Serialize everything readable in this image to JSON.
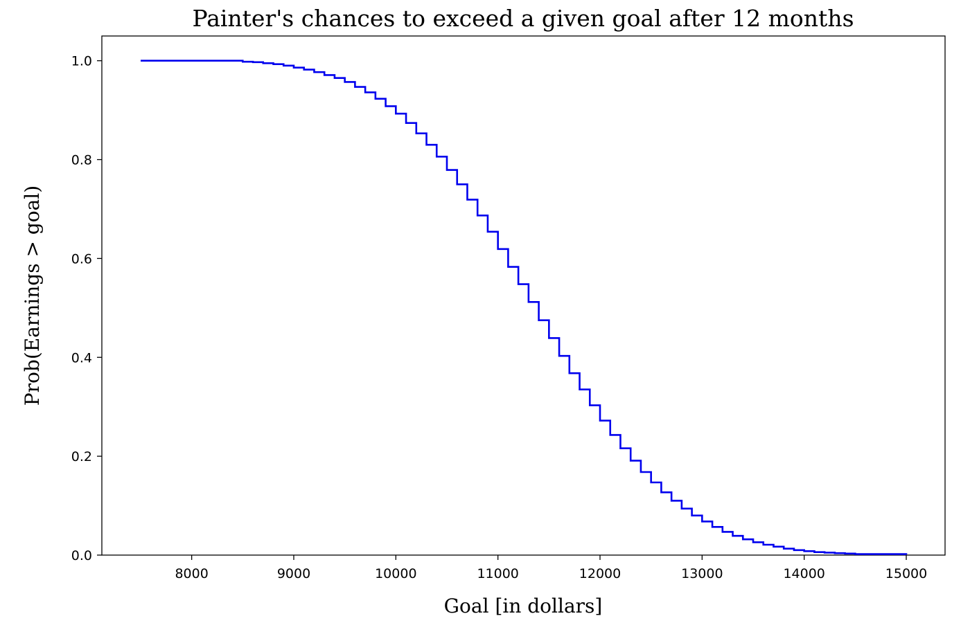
{
  "chart_data": {
    "type": "line",
    "step": true,
    "title": "Painter's chances to exceed a given goal after 12 months",
    "xlabel": "Goal [in dollars]",
    "ylabel": "Prob(Earnings > goal)",
    "xlim": [
      7120,
      15380
    ],
    "ylim": [
      0.0,
      1.05
    ],
    "xticks": [
      8000,
      9000,
      10000,
      11000,
      12000,
      13000,
      14000,
      15000
    ],
    "yticks": [
      0.0,
      0.2,
      0.4,
      0.6,
      0.8,
      1.0
    ],
    "ytick_labels": [
      "0.0",
      "0.2",
      "0.4",
      "0.6",
      "0.8",
      "1.0"
    ],
    "grid": false,
    "series": [
      {
        "color": "#0000ee",
        "x": [
          7500,
          8500,
          8600,
          8700,
          8800,
          8900,
          9000,
          9100,
          9200,
          9300,
          9400,
          9500,
          9600,
          9700,
          9800,
          9900,
          10000,
          10100,
          10200,
          10300,
          10400,
          10500,
          10600,
          10700,
          10800,
          10900,
          11000,
          11100,
          11200,
          11300,
          11400,
          11500,
          11600,
          11700,
          11800,
          11900,
          12000,
          12100,
          12200,
          12300,
          12400,
          12500,
          12600,
          12700,
          12800,
          12900,
          13000,
          13100,
          13200,
          13300,
          13400,
          13500,
          13600,
          13700,
          13800,
          13900,
          14000,
          14100,
          14200,
          14300,
          14400,
          14500,
          15000
        ],
        "y": [
          1.0,
          0.998,
          0.997,
          0.995,
          0.993,
          0.99,
          0.986,
          0.982,
          0.977,
          0.971,
          0.965,
          0.957,
          0.947,
          0.936,
          0.923,
          0.908,
          0.893,
          0.874,
          0.853,
          0.83,
          0.806,
          0.779,
          0.75,
          0.719,
          0.687,
          0.654,
          0.619,
          0.583,
          0.548,
          0.512,
          0.475,
          0.439,
          0.403,
          0.368,
          0.335,
          0.303,
          0.272,
          0.243,
          0.216,
          0.191,
          0.168,
          0.147,
          0.127,
          0.11,
          0.094,
          0.08,
          0.068,
          0.057,
          0.047,
          0.039,
          0.032,
          0.026,
          0.021,
          0.017,
          0.013,
          0.01,
          0.008,
          0.006,
          0.005,
          0.004,
          0.003,
          0.002,
          0.001
        ]
      }
    ]
  }
}
